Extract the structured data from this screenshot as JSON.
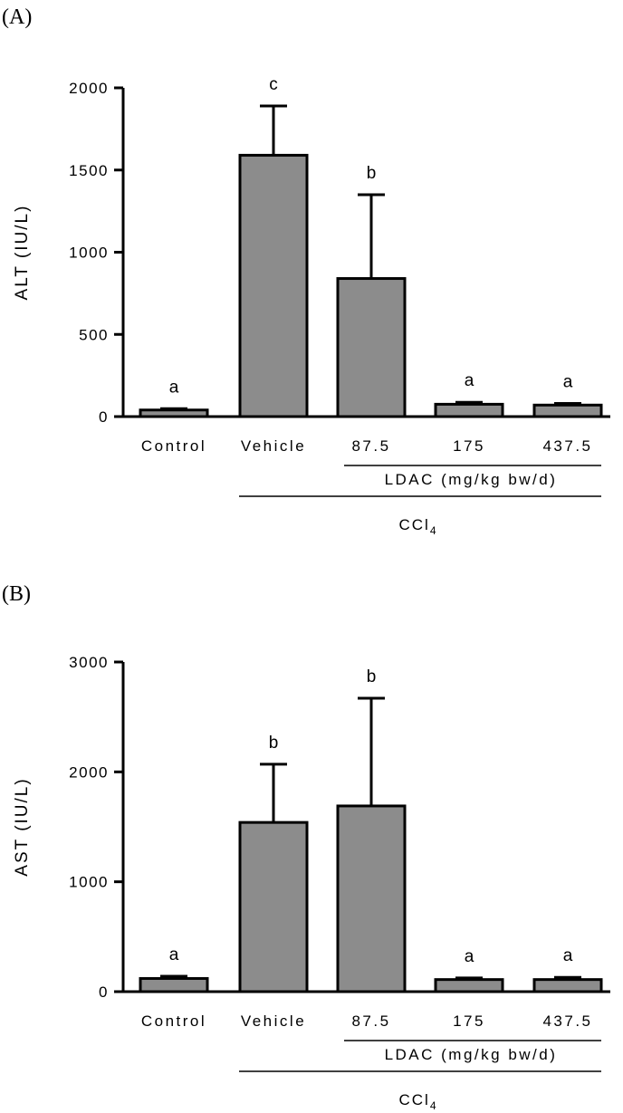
{
  "chart_data": [
    {
      "type": "bar",
      "panel_label": "(A)",
      "ylabel": "ALT (IU/L)",
      "ylim": [
        0,
        2000
      ],
      "yticks": [
        0,
        500,
        1000,
        1500,
        2000
      ],
      "categories": [
        "Control",
        "Vehicle",
        "87.5",
        "175",
        "437.5"
      ],
      "values": [
        40,
        1590,
        840,
        75,
        70
      ],
      "errors": [
        8,
        300,
        510,
        12,
        10
      ],
      "significance": [
        "a",
        "c",
        "b",
        "a",
        "a"
      ],
      "dose_group_label": "LDAC (mg/kg bw/d)",
      "treatment_label": "CCl",
      "treatment_subscript": "4"
    },
    {
      "type": "bar",
      "panel_label": "(B)",
      "ylabel": "AST (IU/L)",
      "ylim": [
        0,
        3000
      ],
      "yticks": [
        0,
        1000,
        2000,
        3000
      ],
      "categories": [
        "Control",
        "Vehicle",
        "87.5",
        "175",
        "437.5"
      ],
      "values": [
        120,
        1540,
        1690,
        110,
        110
      ],
      "errors": [
        20,
        530,
        980,
        15,
        20
      ],
      "significance": [
        "a",
        "b",
        "b",
        "a",
        "a"
      ],
      "dose_group_label": "LDAC (mg/kg bw/d)",
      "treatment_label": "CCl",
      "treatment_subscript": "4"
    }
  ]
}
